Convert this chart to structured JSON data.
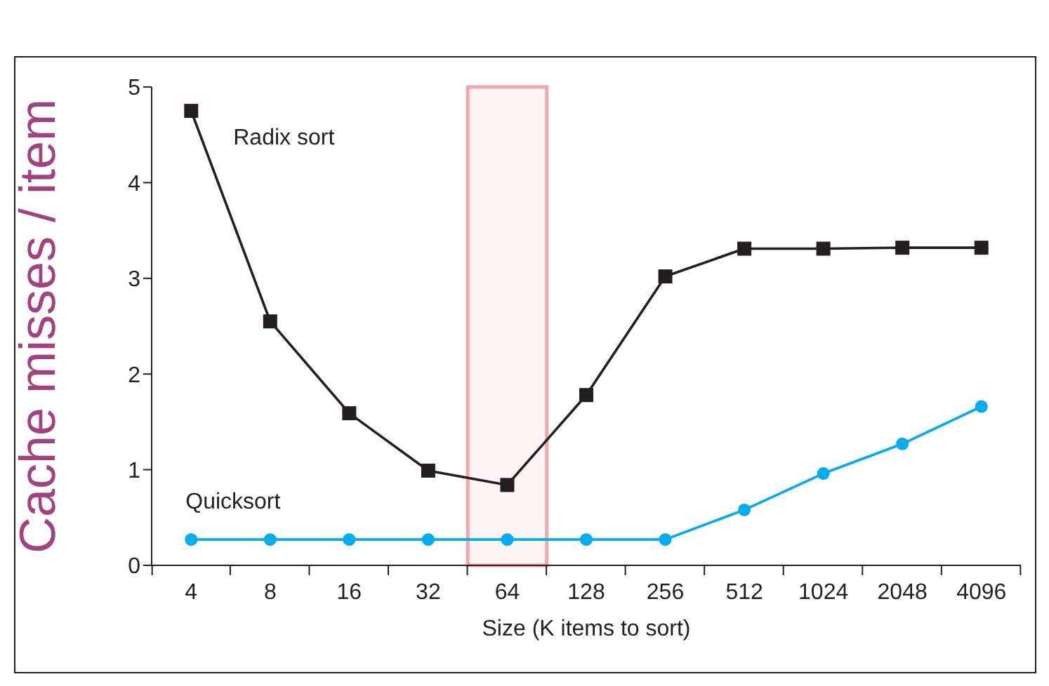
{
  "chart_data": {
    "type": "line",
    "xlabel": "Size (K items to sort)",
    "ylabel": "Cache misses / item",
    "categories": [
      "4",
      "8",
      "16",
      "32",
      "64",
      "128",
      "256",
      "512",
      "1024",
      "2048",
      "4096"
    ],
    "series": [
      {
        "name": "Radix sort",
        "color": "#231f20",
        "marker": "square",
        "values": [
          4.75,
          2.55,
          1.59,
          0.99,
          0.84,
          1.78,
          3.02,
          3.31,
          3.31,
          3.32,
          3.32
        ]
      },
      {
        "name": "Quicksort",
        "color": "#00aeef",
        "marker": "circle",
        "values": [
          0.27,
          0.27,
          0.27,
          0.27,
          0.27,
          0.27,
          0.27,
          0.58,
          0.96,
          1.27,
          1.66
        ]
      }
    ],
    "ylim": [
      0,
      5
    ],
    "yticks": [
      0,
      1,
      2,
      3,
      4,
      5
    ],
    "grid": false,
    "legend": false,
    "bands": [
      {
        "axis": "x",
        "from": "64",
        "to": "64",
        "color": "#f4a6ae"
      }
    ]
  }
}
